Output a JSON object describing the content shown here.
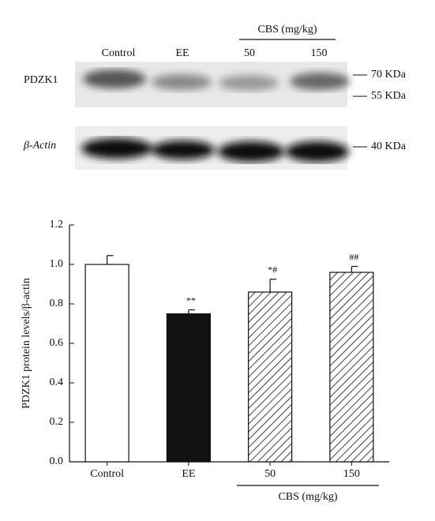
{
  "blot": {
    "lanes": [
      "Control",
      "EE"
    ],
    "group_label": "CBS (mg/kg)",
    "group_lanes": [
      "50",
      "150"
    ],
    "rows": [
      {
        "label": "PDZK1",
        "markers": [
          "70 KDa",
          "55 KDa"
        ]
      },
      {
        "label": "β-Actin",
        "markers": [
          "40 KDa"
        ]
      }
    ]
  },
  "chart_data": {
    "type": "bar",
    "y_label": "PDZK1 protein levels/β-actin",
    "categories": [
      "Control",
      "EE",
      "50",
      "150"
    ],
    "group_label": "CBS (mg/kg)",
    "values": [
      1.0,
      0.75,
      0.86,
      0.96
    ],
    "errors": [
      0.045,
      0.02,
      0.065,
      0.03
    ],
    "significance": [
      null,
      "**",
      "*#",
      "##"
    ],
    "colors": [
      "#ffffff",
      "#111111",
      "#ffffff",
      "#ffffff"
    ],
    "patterns": [
      "solid",
      "solid",
      "hatch",
      "hatch"
    ],
    "ylim": [
      0,
      1.2
    ],
    "yticks": [
      {
        "value": 0,
        "label": "0.0"
      },
      0.2,
      0.4,
      0.6,
      0.8,
      {
        "value": 1,
        "label": "1.0"
      },
      1.2
    ]
  }
}
